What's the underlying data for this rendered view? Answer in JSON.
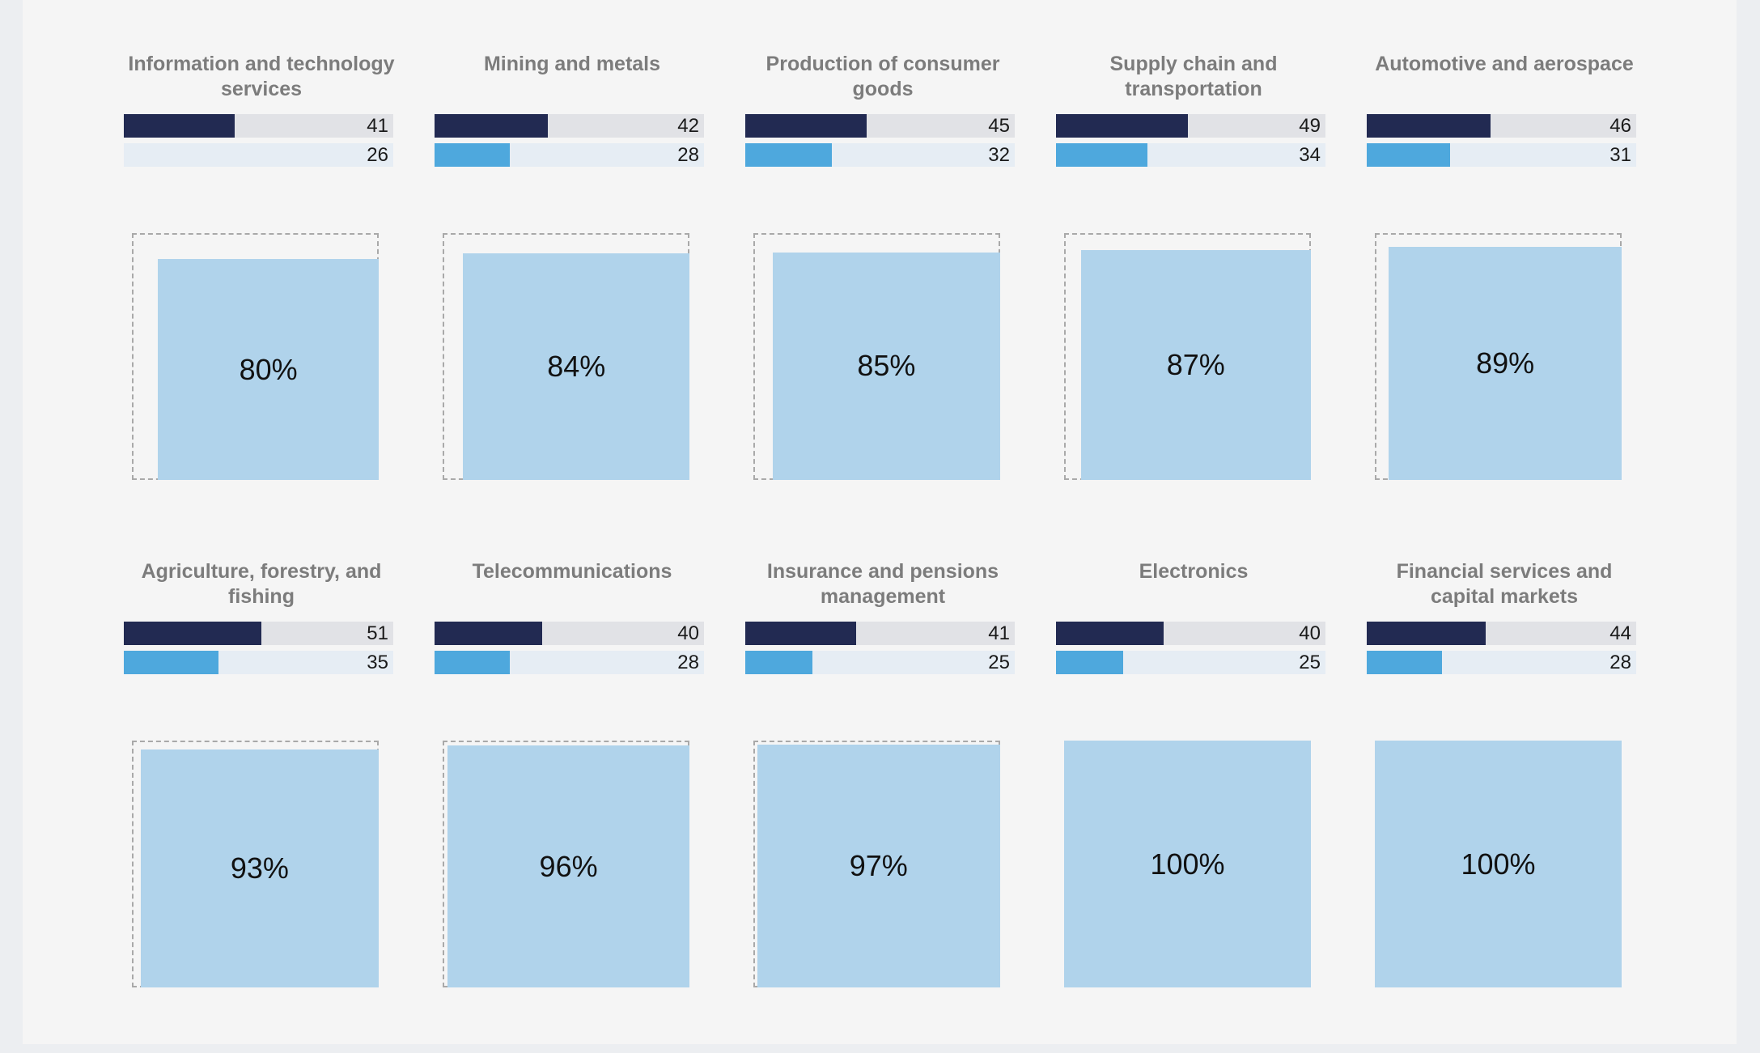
{
  "colors": {
    "dark_bar": "#222a52",
    "light_bar": "#4ea8dd",
    "square_fill": "#b0d3eb",
    "outline": "#a9a9a9"
  },
  "chart_data": {
    "type": "bar",
    "bar_scale_max": 100,
    "percent_max": 100,
    "categories": [
      "Information and technology services",
      "Mining and metals",
      "Production of consumer goods",
      "Supply chain and transportation",
      "Automotive and aerospace",
      "Agriculture, forestry, and fishing",
      "Telecommunications",
      "Insurance and pensions management",
      "Electronics",
      "Financial services and capital markets"
    ],
    "series": [
      {
        "values": [
          41,
          42,
          45,
          49,
          46,
          51,
          40,
          41,
          40,
          44
        ]
      },
      {
        "values": [
          26,
          28,
          32,
          34,
          31,
          35,
          28,
          25,
          25,
          28
        ]
      }
    ],
    "percentages": [
      80,
      84,
      85,
      87,
      89,
      93,
      96,
      97,
      100,
      100
    ],
    "percent_labels": [
      "80%",
      "84%",
      "85%",
      "87%",
      "89%",
      "93%",
      "96%",
      "97%",
      "100%",
      "100%"
    ]
  }
}
